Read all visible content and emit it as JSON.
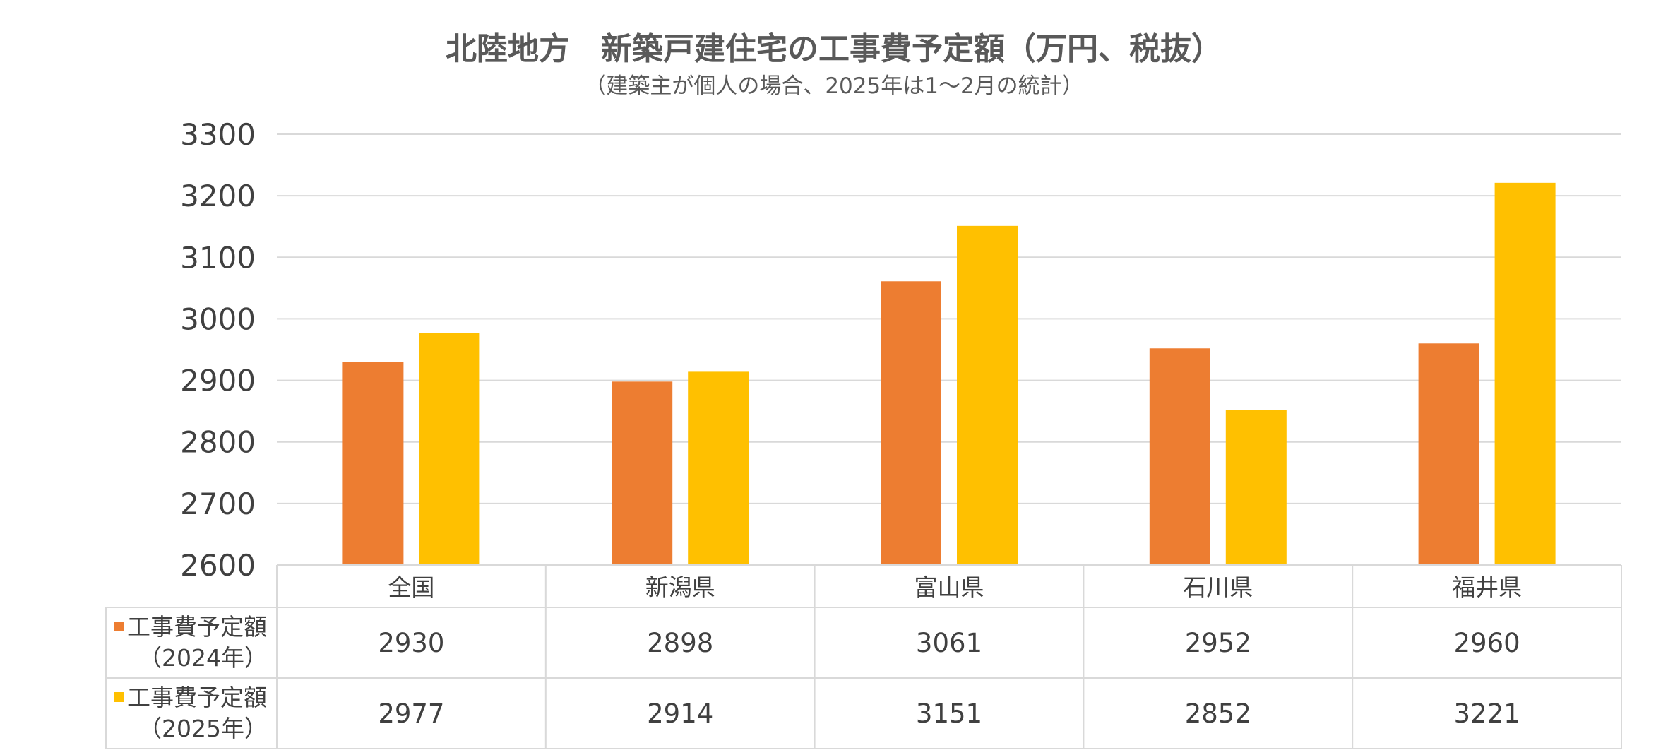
{
  "chart_data": {
    "type": "bar",
    "title": "北陸地方　新築戸建住宅の工事費予定額（万円、税抜）",
    "subtitle": "（建築主が個人の場合、2025年は1～2月の統計）",
    "categories": [
      "全国",
      "新潟県",
      "富山県",
      "石川県",
      "福井県"
    ],
    "series": [
      {
        "name_line1": "工事費予定額",
        "name_line2": "（2024年）",
        "color": "#ED7D31",
        "values": [
          2930,
          2898,
          3061,
          2952,
          2960
        ]
      },
      {
        "name_line1": "工事費予定額",
        "name_line2": "（2025年）",
        "color": "#FFC000",
        "values": [
          2977,
          2914,
          3151,
          2852,
          3221
        ]
      }
    ],
    "y_ticks": [
      "3300",
      "3200",
      "3100",
      "3000",
      "2900",
      "2800",
      "2700",
      "2600"
    ],
    "ylim": [
      2600,
      3300
    ],
    "y_step": 100,
    "grid": true,
    "legend": "data-table"
  }
}
